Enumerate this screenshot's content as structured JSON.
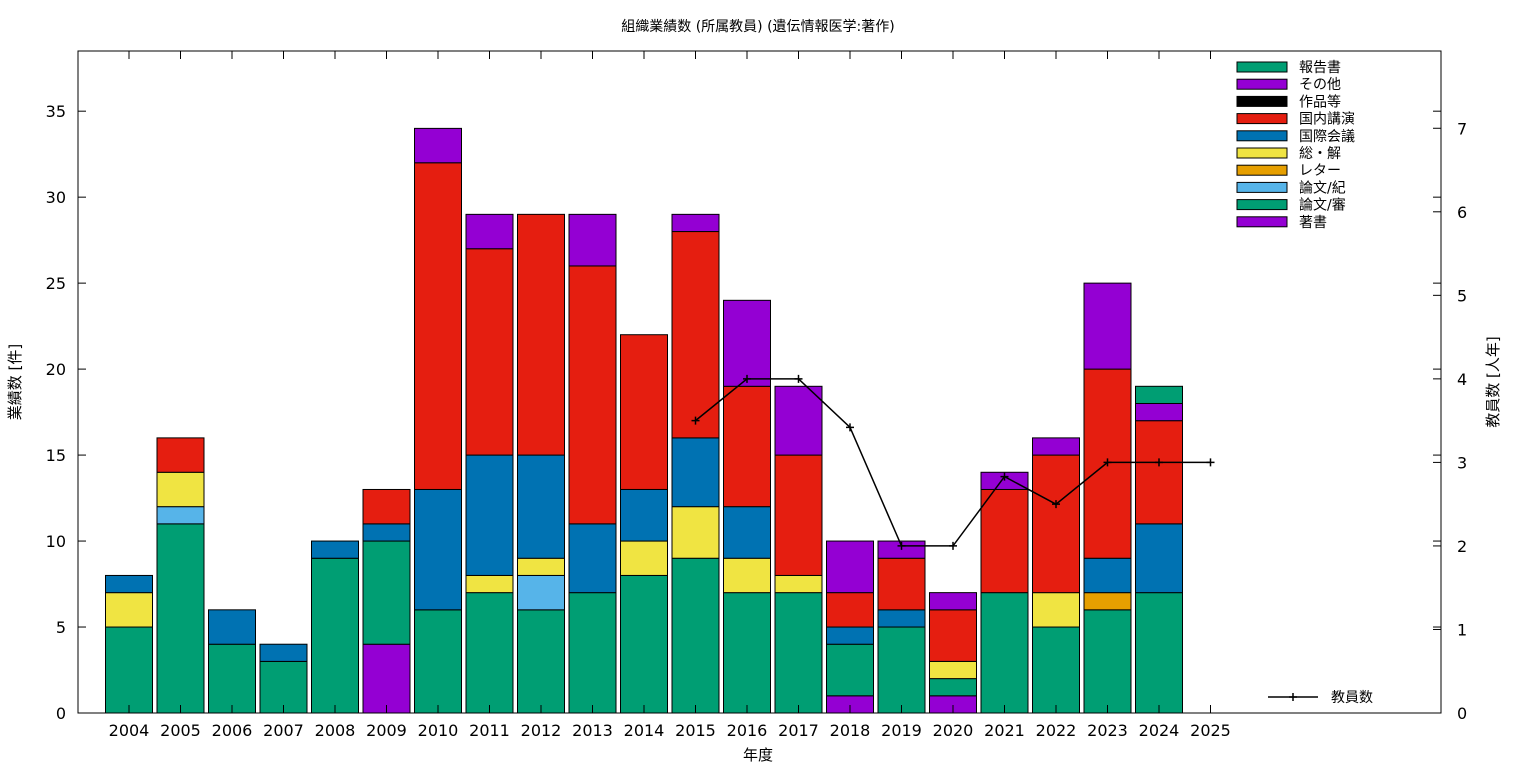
{
  "chart_data": {
    "type": "bar",
    "stacked": true,
    "title": "組織業績数 (所属教員) (遺伝情報医学:著作)",
    "xlabel": "年度",
    "ylabel": "業績数 [件]",
    "y2label": "教員数 [人年]",
    "categories": [
      "2004",
      "2005",
      "2006",
      "2007",
      "2008",
      "2009",
      "2010",
      "2011",
      "2012",
      "2013",
      "2014",
      "2015",
      "2016",
      "2017",
      "2018",
      "2019",
      "2020",
      "2021",
      "2022",
      "2023",
      "2024",
      "2025"
    ],
    "ylim": [
      0,
      38.5
    ],
    "yticks": [
      0,
      5,
      10,
      15,
      20,
      25,
      30,
      35
    ],
    "y2lim": [
      0,
      7.925
    ],
    "y2ticks": [
      0,
      1,
      2,
      3,
      4,
      5,
      6,
      7
    ],
    "grid": false,
    "legend_position": "top-right",
    "series": [
      {
        "name": "著書",
        "color": "#9400d3",
        "values": [
          0,
          0,
          0,
          0,
          0,
          4,
          0,
          0,
          0,
          0,
          0,
          0,
          0,
          0,
          1,
          0,
          1,
          0,
          0,
          0,
          0,
          0
        ]
      },
      {
        "name": "論文/審",
        "color": "#009e73",
        "values": [
          5,
          11,
          4,
          3,
          9,
          6,
          6,
          7,
          6,
          7,
          8,
          9,
          7,
          7,
          3,
          5,
          1,
          7,
          5,
          6,
          7,
          0
        ]
      },
      {
        "name": "論文/紀",
        "color": "#56b4e9",
        "values": [
          0,
          1,
          0,
          0,
          0,
          0,
          0,
          0,
          2,
          0,
          0,
          0,
          0,
          0,
          0,
          0,
          0,
          0,
          0,
          0,
          0,
          0
        ]
      },
      {
        "name": "レター",
        "color": "#e69f00",
        "values": [
          0,
          0,
          0,
          0,
          0,
          0,
          0,
          0,
          0,
          0,
          0,
          0,
          0,
          0,
          0,
          0,
          0,
          0,
          0,
          1,
          0,
          0
        ]
      },
      {
        "name": "総・解",
        "color": "#f0e442",
        "values": [
          2,
          2,
          0,
          0,
          0,
          0,
          0,
          1,
          1,
          0,
          2,
          3,
          2,
          1,
          0,
          0,
          1,
          0,
          2,
          0,
          0,
          0
        ]
      },
      {
        "name": "国際会議",
        "color": "#0072b2",
        "values": [
          1,
          0,
          2,
          1,
          1,
          1,
          7,
          7,
          6,
          4,
          3,
          4,
          3,
          0,
          1,
          1,
          0,
          0,
          0,
          2,
          4,
          0
        ]
      },
      {
        "name": "国内講演",
        "color": "#e51e10",
        "values": [
          0,
          2,
          0,
          0,
          0,
          2,
          19,
          12,
          14,
          15,
          9,
          12,
          7,
          7,
          2,
          3,
          3,
          6,
          8,
          11,
          6,
          0
        ]
      },
      {
        "name": "作品等",
        "color": "#000000",
        "values": [
          0,
          0,
          0,
          0,
          0,
          0,
          0,
          0,
          0,
          0,
          0,
          0,
          0,
          0,
          0,
          0,
          0,
          0,
          0,
          0,
          0,
          0
        ]
      },
      {
        "name": "その他",
        "color": "#9400d3",
        "values": [
          0,
          0,
          0,
          0,
          0,
          0,
          2,
          2,
          0,
          3,
          0,
          1,
          5,
          4,
          3,
          1,
          1,
          1,
          1,
          5,
          1,
          0
        ]
      },
      {
        "name": "報告書",
        "color": "#009e73",
        "values": [
          0,
          0,
          0,
          0,
          0,
          0,
          0,
          0,
          0,
          0,
          0,
          0,
          0,
          0,
          0,
          0,
          0,
          0,
          0,
          0,
          1,
          0
        ]
      }
    ],
    "legend_order": [
      "報告書",
      "その他",
      "作品等",
      "国内講演",
      "国際会議",
      "総・解",
      "レター",
      "論文/紀",
      "論文/審",
      "著書"
    ],
    "line_series": {
      "name": "教員数",
      "color": "#000000",
      "axis": "y2",
      "points": [
        {
          "x": "2015",
          "y": 3.5
        },
        {
          "x": "2016",
          "y": 4.0
        },
        {
          "x": "2017",
          "y": 4.0
        },
        {
          "x": "2018",
          "y": 3.42
        },
        {
          "x": "2019",
          "y": 2.0
        },
        {
          "x": "2020",
          "y": 2.0
        },
        {
          "x": "2021",
          "y": 2.83
        },
        {
          "x": "2022",
          "y": 2.5
        },
        {
          "x": "2023",
          "y": 3.0
        },
        {
          "x": "2024",
          "y": 3.0
        },
        {
          "x": "2025",
          "y": 3.0
        }
      ]
    }
  }
}
